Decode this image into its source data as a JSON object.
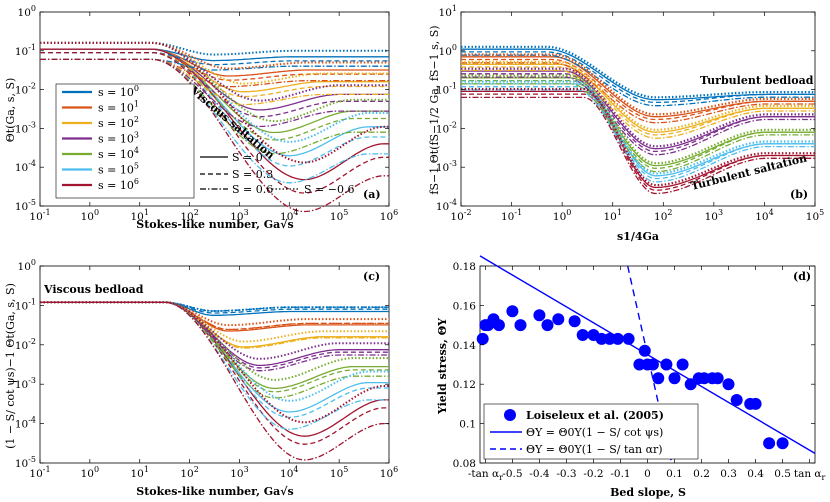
{
  "chart_data": [
    {
      "id": "a",
      "type": "line",
      "panel_label": "(a)",
      "x_scale": "log",
      "y_scale": "log",
      "xlim": [
        0.1,
        1000000
      ],
      "ylim": [
        1e-05,
        1
      ],
      "xlabel": "Stokes-like number, Ga√s",
      "ylabel": "Θt(Ga, s, S)",
      "x_tick_labels": [
        "10-1",
        "100",
        "101",
        "102",
        "103",
        "104",
        "105",
        "106"
      ],
      "y_tick_labels": [
        "10-5",
        "10-4",
        "10-3",
        "10-2",
        "10-1",
        "100"
      ],
      "annotation": "Viscous saltation",
      "legend_colors": [
        {
          "label": "s = 100",
          "color": "#0072BD"
        },
        {
          "label": "s = 101",
          "color": "#D95319"
        },
        {
          "label": "s = 102",
          "color": "#EDB120"
        },
        {
          "label": "s = 103",
          "color": "#7E2F8E"
        },
        {
          "label": "s = 104",
          "color": "#77AC30"
        },
        {
          "label": "s = 105",
          "color": "#4DBEEE"
        },
        {
          "label": "s = 106",
          "color": "#A2142F"
        }
      ],
      "legend_styles": [
        {
          "label": "S = 0",
          "dash": "solid"
        },
        {
          "label": "S = 0.3",
          "dash": "dashed"
        },
        {
          "label": "S = 0.6",
          "dash": "dashdot"
        },
        {
          "label": "S = −0.6",
          "dash": "dotted"
        }
      ],
      "curve_params": {
        "s_exponents": [
          0,
          1,
          2,
          3,
          4,
          5,
          6
        ],
        "S_values": [
          0,
          0.3,
          0.6,
          -0.6
        ],
        "plateau_low": {
          "0": 0.11,
          "0.3": 0.09,
          "0.6": 0.06,
          "-0.6": 0.16
        },
        "cross_x": 70,
        "final_value": {
          "0": [
            0.07,
            0.032,
            0.016,
            0.0075,
            0.0028,
            0.0011,
            0.0004
          ],
          "0.3": [
            0.055,
            0.025,
            0.012,
            0.005,
            0.0018,
            0.0006,
            0.00018
          ],
          "0.6": [
            0.04,
            0.017,
            0.0075,
            0.0028,
            0.0008,
            0.00022,
            6e-05
          ],
          "-0.6": [
            0.1,
            0.05,
            0.026,
            0.013,
            0.0055,
            0.0025,
            0.0011
          ]
        },
        "dip_factor": [
          0.8,
          0.7,
          0.55,
          0.4,
          0.28,
          0.18,
          0.12
        ],
        "dip_x": [
          300,
          600,
          1200,
          2500,
          5000,
          10000,
          20000
        ]
      }
    },
    {
      "id": "b",
      "type": "line",
      "panel_label": "(b)",
      "x_scale": "log",
      "y_scale": "log",
      "xlim": [
        0.01,
        100000
      ],
      "ylim": [
        0.0001,
        10
      ],
      "xlabel": "s1/4Ga",
      "ylabel": "fS−1 Θt(fS−1/2 Ga, fS−1 s, S)",
      "x_tick_labels": [
        "10-2",
        "10-1",
        "100",
        "101",
        "102",
        "103",
        "104",
        "105"
      ],
      "y_tick_labels": [
        "10-4",
        "10-3",
        "10-2",
        "10-1",
        "100",
        "101"
      ],
      "annotations": [
        "Turbulent bedload",
        "Turbulent saltation"
      ],
      "curve_params": {
        "low_values": [
          1.1,
          0.7,
          0.45,
          0.3,
          0.2,
          0.14,
          0.09
        ],
        "upper_envelope": 0.07,
        "final_value": [
          0.075,
          0.05,
          0.033,
          0.02,
          0.008,
          0.004,
          0.002
        ],
        "min_value": [
          0.055,
          0.02,
          0.008,
          0.003,
          0.0011,
          0.0006,
          0.0003
        ],
        "min_x": 70
      }
    },
    {
      "id": "c",
      "type": "line",
      "panel_label": "(c)",
      "x_scale": "log",
      "y_scale": "log",
      "xlim": [
        0.1,
        1000000
      ],
      "ylim": [
        1e-05,
        1
      ],
      "xlabel": "Stokes-like number, Ga√s",
      "ylabel": "(1 − S/ cot ψs)−1 Θt(Ga, s, S)",
      "x_tick_labels": [
        "10-1",
        "100",
        "101",
        "102",
        "103",
        "104",
        "105",
        "106"
      ],
      "y_tick_labels": [
        "10-5",
        "10-4",
        "10-3",
        "10-2",
        "10-1",
        "100"
      ],
      "annotation": "Viscous bedload",
      "curve_params": {
        "plateau": 0.12,
        "final_value": {
          "0": [
            0.07,
            0.032,
            0.016,
            0.0075,
            0.0028,
            0.0011,
            0.0004
          ],
          "0.3": [
            0.08,
            0.035,
            0.016,
            0.0065,
            0.0023,
            0.0008,
            0.00025
          ],
          "0.6": [
            0.09,
            0.035,
            0.015,
            0.0055,
            0.0016,
            0.0004,
            0.0001
          ],
          "-0.6": [
            0.09,
            0.045,
            0.022,
            0.011,
            0.0046,
            0.0021,
            0.0009
          ]
        }
      }
    },
    {
      "id": "d",
      "type": "scatter",
      "panel_label": "(d)",
      "xlim": [
        -0.62,
        0.62
      ],
      "ylim": [
        0.08,
        0.18
      ],
      "xlabel": "Bed slope, S",
      "ylabel": "Yield stress, ΘY",
      "x_tick_labels": [
        "-tan αr",
        "-0.5",
        "-0.4",
        "-0.3",
        "-0.2",
        "-0.1",
        "0",
        "0.1",
        "0.2",
        "0.3",
        "0.4",
        "0.5",
        "tan αr"
      ],
      "y_tick_labels": [
        "0.08",
        "0.1",
        "0.12",
        "0.14",
        "0.16",
        "0.18"
      ],
      "series": [
        {
          "name": "Loiseleux et al. (2005)",
          "color": "#0000FF",
          "x": [
            -0.61,
            -0.6,
            -0.59,
            -0.57,
            -0.55,
            -0.5,
            -0.47,
            -0.4,
            -0.37,
            -0.33,
            -0.27,
            -0.24,
            -0.2,
            -0.17,
            -0.14,
            -0.11,
            -0.07,
            -0.03,
            -0.01,
            0.0,
            0.02,
            0.04,
            0.07,
            0.1,
            0.13,
            0.16,
            0.19,
            0.21,
            0.24,
            0.26,
            0.3,
            0.33,
            0.38,
            0.4,
            0.45,
            0.5
          ],
          "y": [
            0.143,
            0.15,
            0.15,
            0.153,
            0.15,
            0.157,
            0.15,
            0.155,
            0.15,
            0.153,
            0.152,
            0.145,
            0.145,
            0.143,
            0.143,
            0.143,
            0.143,
            0.13,
            0.137,
            0.13,
            0.13,
            0.123,
            0.13,
            0.123,
            0.13,
            0.12,
            0.123,
            0.123,
            0.123,
            0.123,
            0.12,
            0.112,
            0.11,
            0.11,
            0.09,
            0.09
          ]
        }
      ],
      "lines": [
        {
          "name": "ΘY = Θ0Y(1 − S/ cot ψs)",
          "dash": "solid",
          "color": "#0000FF",
          "theta0": 0.135,
          "cot_psi": 1.67
        },
        {
          "name": "ΘY = Θ0Y(1 − S/ tan αr)",
          "dash": "dashed",
          "color": "#0000FF",
          "theta0": 0.135,
          "tan_alpha": 0.22
        }
      ]
    }
  ]
}
